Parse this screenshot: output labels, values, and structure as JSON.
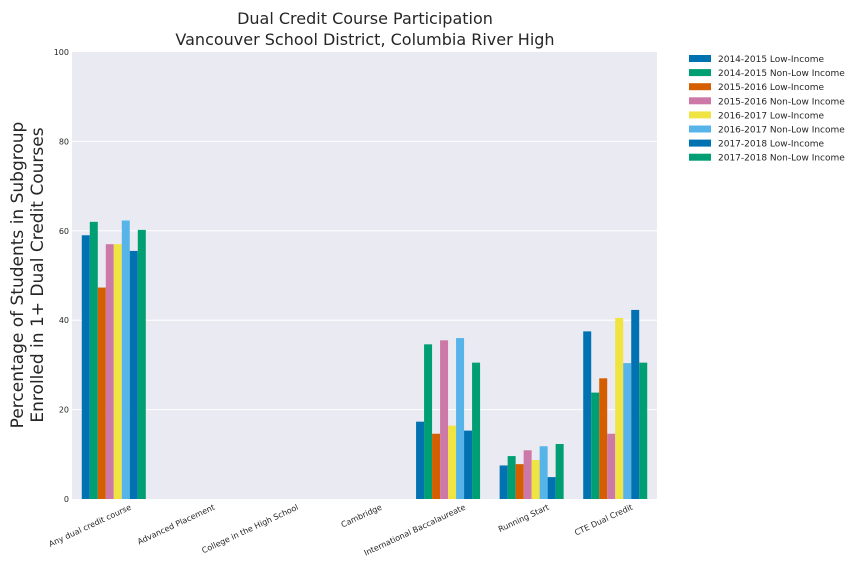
{
  "chart_data": {
    "type": "bar",
    "title": [
      "Dual Credit Course Participation",
      "Vancouver School District, Columbia River High"
    ],
    "xlabel": "",
    "ylabel": [
      "Percentage of Students in Subgroup",
      "Enrolled in 1+ Dual Credit Courses"
    ],
    "ylim": [
      0,
      100
    ],
    "yticks": [
      "0",
      "20",
      "40",
      "60",
      "80",
      "100"
    ],
    "grid": true,
    "legend_position": "outside-top-right",
    "categories": [
      "Any dual credit course",
      "Advanced Placement",
      "College in the High School",
      "Cambridge",
      "International Baccalaureate",
      "Running Start",
      "CTE Dual Credit"
    ],
    "series": [
      {
        "name": "2014-2015 Low-Income",
        "color": "#0072b2",
        "values": [
          59,
          0,
          0,
          0,
          17.3,
          7.5,
          37.5
        ]
      },
      {
        "name": "2014-2015 Non-Low Income",
        "color": "#009e73",
        "values": [
          62,
          0,
          0,
          0,
          34.6,
          9.6,
          23.8
        ]
      },
      {
        "name": "2015-2016 Low-Income",
        "color": "#d55e00",
        "values": [
          47.3,
          0,
          0,
          0,
          14.6,
          7.8,
          27
        ]
      },
      {
        "name": "2015-2016 Non-Low Income",
        "color": "#cc79a7",
        "values": [
          57,
          0,
          0,
          0,
          35.5,
          10.9,
          14.6
        ]
      },
      {
        "name": "2016-2017 Low-Income",
        "color": "#f0e442",
        "values": [
          57,
          0,
          0,
          0,
          16.4,
          8.7,
          40.5
        ]
      },
      {
        "name": "2016-2017 Non-Low Income",
        "color": "#56b4e9",
        "values": [
          62.3,
          0,
          0,
          0,
          36,
          11.8,
          30.4
        ]
      },
      {
        "name": "2017-2018 Low-Income",
        "color": "#0072b2",
        "values": [
          55.5,
          0,
          0,
          0,
          15.3,
          4.9,
          42.3
        ]
      },
      {
        "name": "2017-2018 Non-Low Income",
        "color": "#009e73",
        "values": [
          60.2,
          0,
          0,
          0,
          30.5,
          12.3,
          30.5
        ]
      }
    ]
  }
}
